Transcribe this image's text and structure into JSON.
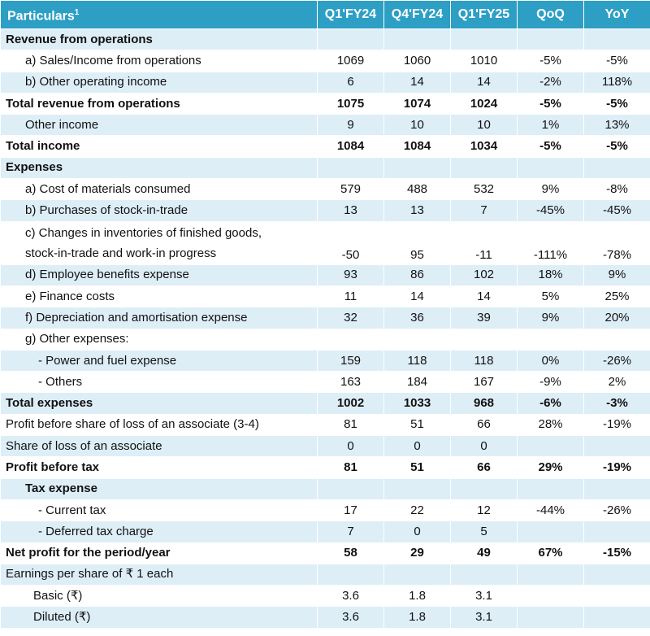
{
  "table": {
    "headers": {
      "particulars": "Particulars",
      "particulars_sup": "1",
      "q1fy24": "Q1'FY24",
      "q4fy24": "Q4'FY24",
      "q1fy25": "Q1'FY25",
      "qoq": "QoQ",
      "yoy": "YoY"
    },
    "rows": [
      {
        "label": "Revenue from operations",
        "c1": "",
        "c2": "",
        "c3": "",
        "qoq": "",
        "yoy": ""
      },
      {
        "label": "a) Sales/Income from operations",
        "c1": "1069",
        "c2": "1060",
        "c3": "1010",
        "qoq": "-5%",
        "yoy": "-5%"
      },
      {
        "label": "b) Other operating income",
        "c1": "6",
        "c2": "14",
        "c3": "14",
        "qoq": "-2%",
        "yoy": "118%"
      },
      {
        "label": "Total revenue from operations",
        "c1": "1075",
        "c2": "1074",
        "c3": "1024",
        "qoq": "-5%",
        "yoy": "-5%"
      },
      {
        "label": "Other income",
        "c1": "9",
        "c2": "10",
        "c3": "10",
        "qoq": "1%",
        "yoy": "13%"
      },
      {
        "label": "Total income",
        "c1": "1084",
        "c2": "1084",
        "c3": "1034",
        "qoq": "-5%",
        "yoy": "-5%"
      },
      {
        "label": "Expenses",
        "c1": "",
        "c2": "",
        "c3": "",
        "qoq": "",
        "yoy": ""
      },
      {
        "label": "a) Cost of materials consumed",
        "c1": "579",
        "c2": "488",
        "c3": "532",
        "qoq": "9%",
        "yoy": "-8%"
      },
      {
        "label": "b) Purchases of stock-in-trade",
        "c1": "13",
        "c2": "13",
        "c3": "7",
        "qoq": "-45%",
        "yoy": "-45%"
      },
      {
        "label_line1": "c)  Changes in inventories of finished goods,",
        "label_line2": "stock-in-trade and work-in progress",
        "c1": "-50",
        "c2": "95",
        "c3": "-11",
        "qoq": "-111%",
        "yoy": "-78%"
      },
      {
        "label": "d) Employee benefits expense",
        "c1": "93",
        "c2": "86",
        "c3": "102",
        "qoq": "18%",
        "yoy": "9%"
      },
      {
        "label": "e) Finance costs",
        "c1": "11",
        "c2": "14",
        "c3": "14",
        "qoq": "5%",
        "yoy": "25%"
      },
      {
        "label": "f) Depreciation and amortisation expense",
        "c1": "32",
        "c2": "36",
        "c3": "39",
        "qoq": "9%",
        "yoy": "20%"
      },
      {
        "label": "g) Other expenses:",
        "c1": "",
        "c2": "",
        "c3": "",
        "qoq": "",
        "yoy": ""
      },
      {
        "label": "- Power and fuel expense",
        "c1": "159",
        "c2": "118",
        "c3": "118",
        "qoq": "0%",
        "yoy": "-26%"
      },
      {
        "label": "- Others",
        "c1": "163",
        "c2": "184",
        "c3": "167",
        "qoq": "-9%",
        "yoy": "2%"
      },
      {
        "label": "Total expenses",
        "c1": "1002",
        "c2": "1033",
        "c3": "968",
        "qoq": "-6%",
        "yoy": "-3%"
      },
      {
        "label": "Profit before share of loss of an associate (3-4)",
        "c1": "81",
        "c2": "51",
        "c3": "66",
        "qoq": "28%",
        "yoy": "-19%"
      },
      {
        "label": "Share of loss of an associate",
        "c1": "0",
        "c2": "0",
        "c3": "0",
        "qoq": "",
        "yoy": ""
      },
      {
        "label": "Profit before tax",
        "c1": "81",
        "c2": "51",
        "c3": "66",
        "qoq": "29%",
        "yoy": "-19%"
      },
      {
        "label": "Tax expense",
        "c1": "",
        "c2": "",
        "c3": "",
        "qoq": "",
        "yoy": ""
      },
      {
        "label": "- Current tax",
        "c1": "17",
        "c2": "22",
        "c3": "12",
        "qoq": "-44%",
        "yoy": "-26%"
      },
      {
        "label": "- Deferred tax charge",
        "c1": "7",
        "c2": "0",
        "c3": "5",
        "qoq": "",
        "yoy": ""
      },
      {
        "label": "Net profit for the period/year",
        "c1": "58",
        "c2": "29",
        "c3": "49",
        "qoq": "67%",
        "yoy": "-15%"
      },
      {
        "label": "Earnings per share of ₹ 1 each",
        "c1": "",
        "c2": "",
        "c3": "",
        "qoq": "",
        "yoy": ""
      },
      {
        "label": "Basic (₹)",
        "c1": "3.6",
        "c2": "1.8",
        "c3": "3.1",
        "qoq": "",
        "yoy": ""
      },
      {
        "label": "Diluted (₹)",
        "c1": "3.6",
        "c2": "1.8",
        "c3": "3.1",
        "qoq": "",
        "yoy": ""
      }
    ]
  },
  "colors": {
    "header_bg": "#2d9fc4",
    "header_text": "#ffffff",
    "band_light": "#ddeef7",
    "band_white": "#ffffff"
  }
}
